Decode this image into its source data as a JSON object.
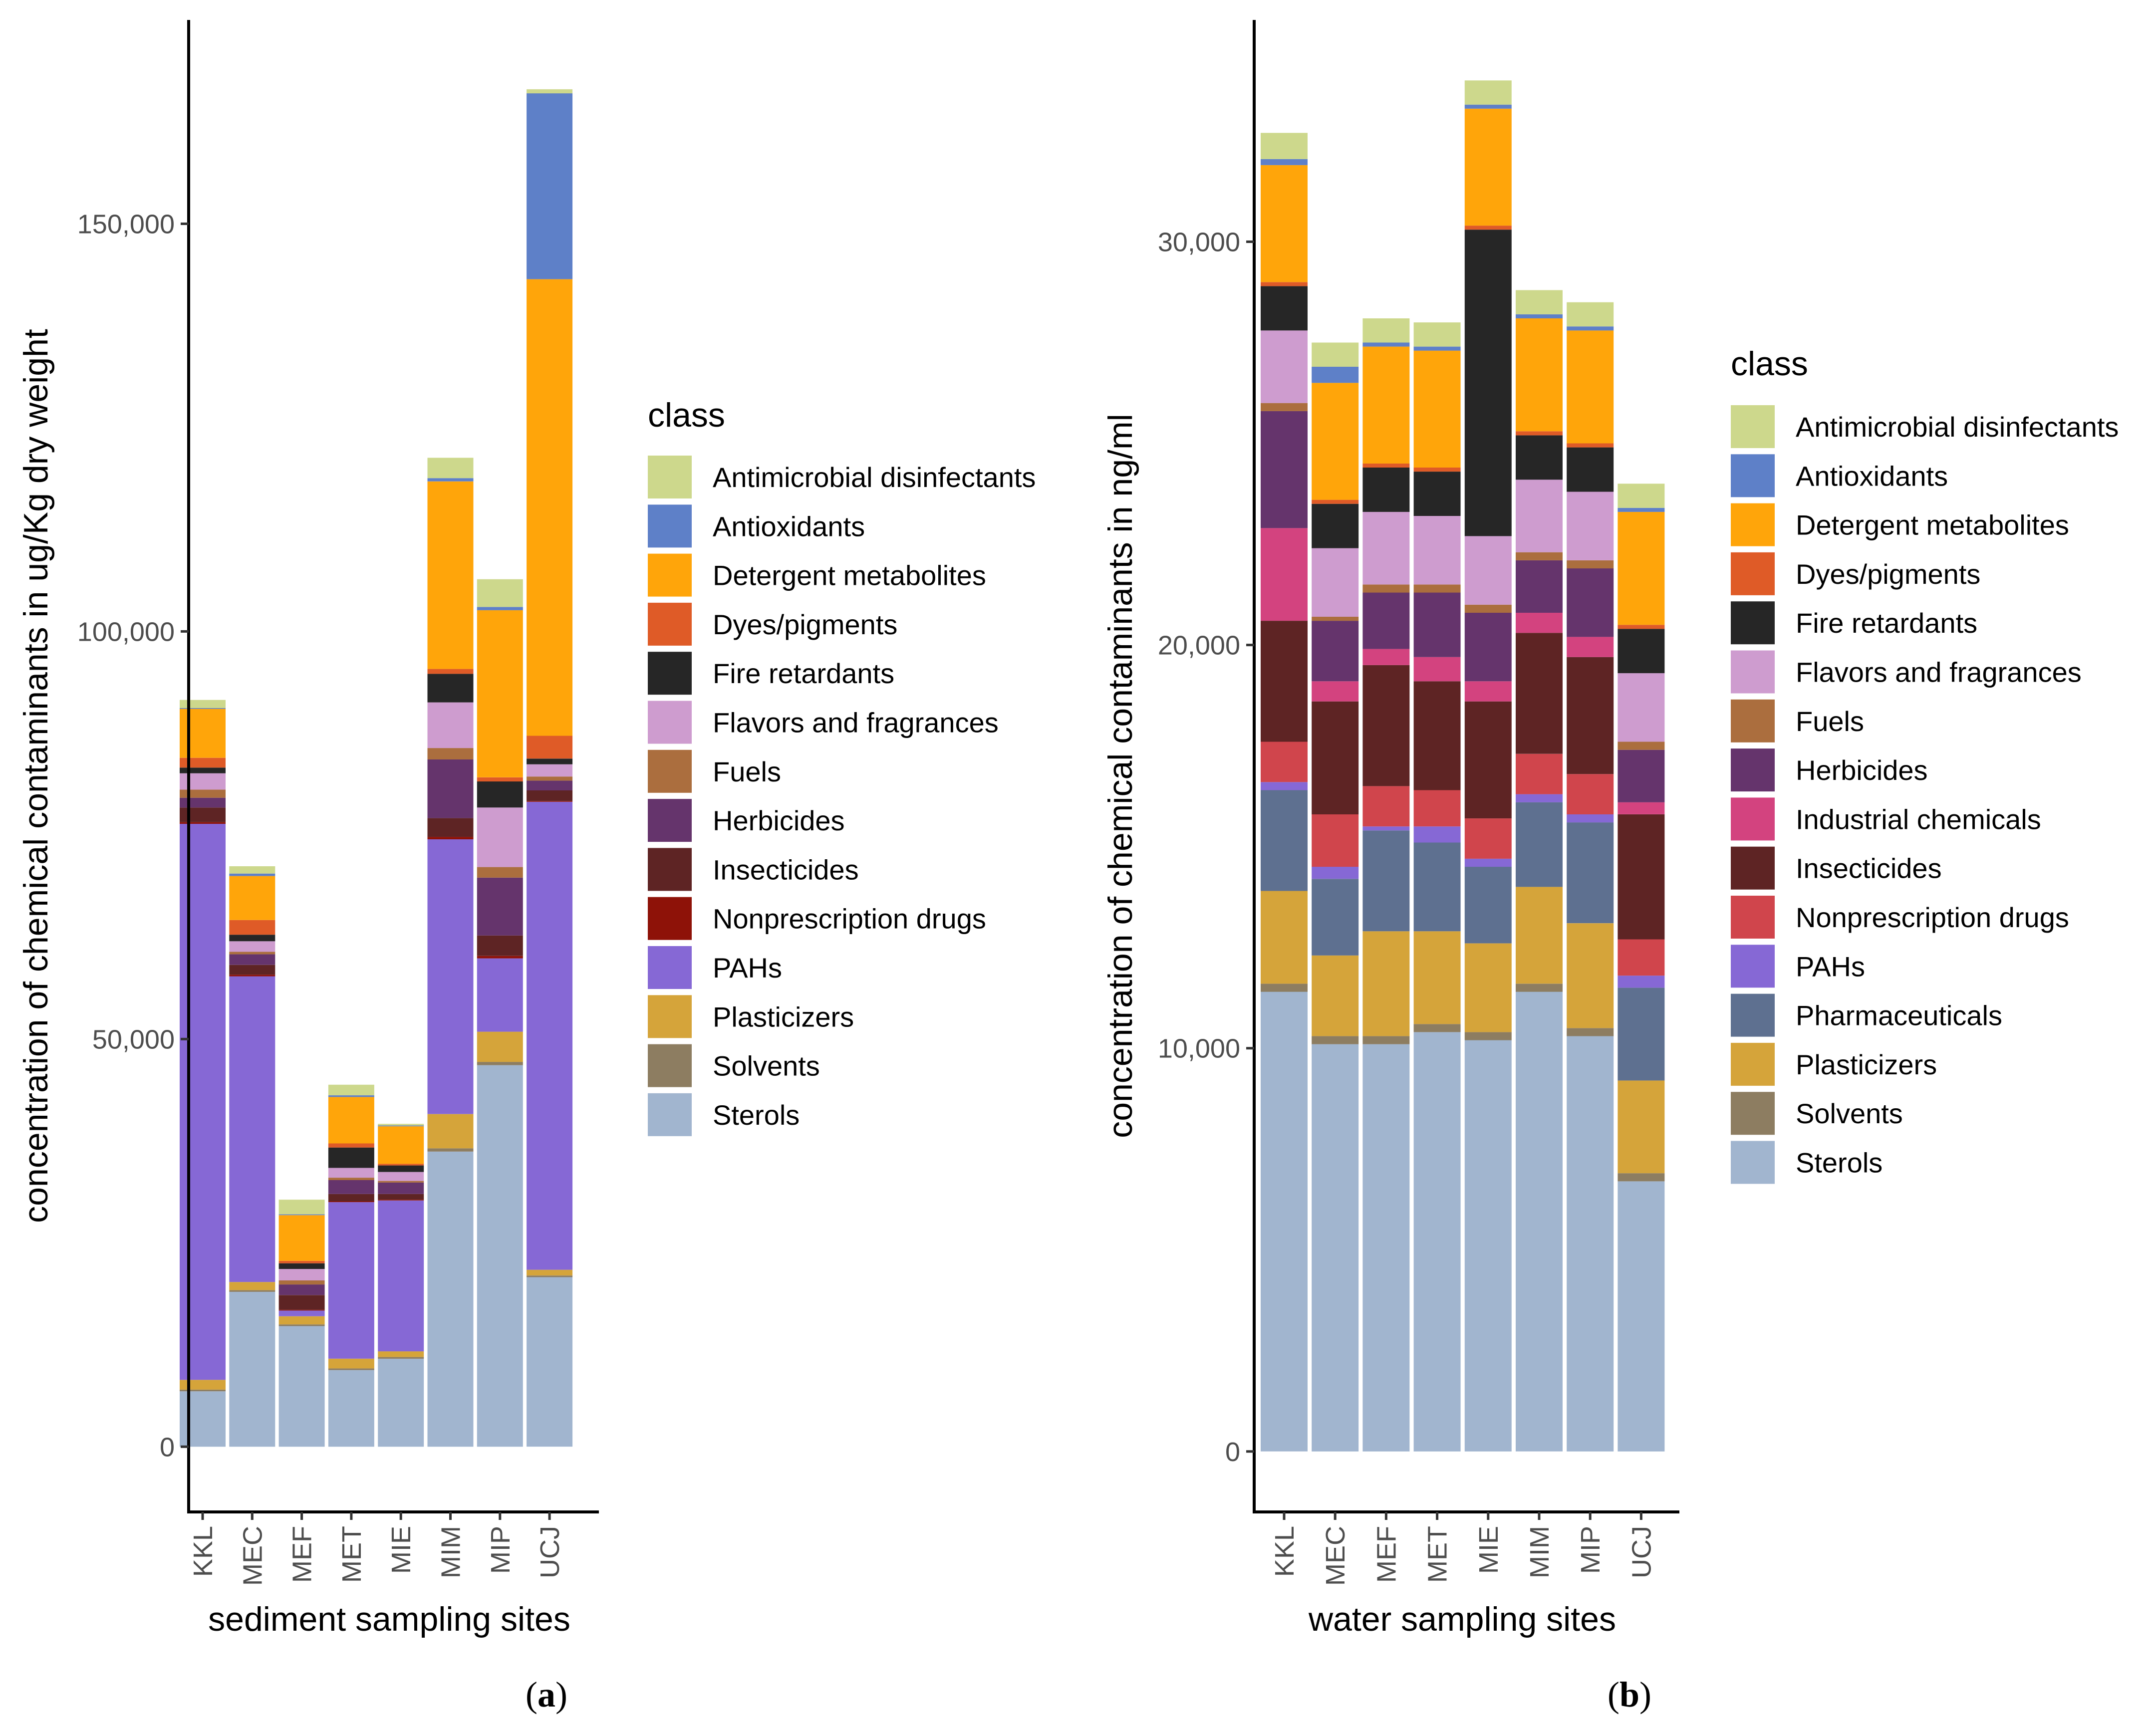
{
  "classes": {
    "Antimicrobial disinfectants": "#CDD88C",
    "Antioxidants": "#5E80C8",
    "Detergent metabolites": "#FFA50A",
    "Dyes/pigments": "#DF5B27",
    "Fire retardants": "#262626",
    "Flavors and fragrances": "#CE9CCF",
    "Fuels": "#AB6E3E",
    "Herbicides": "#65346C",
    "Industrial chemicals": "#D3437F",
    "Insecticides": "#5E2424",
    "Nonprescription drugs": "#D0454C",
    "Nonprescription drugs (a)": "#8E1208",
    "PAHs": "#8668D5",
    "Pharmaceuticals": "#5E7090",
    "Plasticizers": "#D5A43A",
    "Solvents": "#8D7D61",
    "Sterols": "#A1B5CF"
  },
  "chart_data": [
    {
      "type": "bar",
      "stacked": true,
      "panel_label": "(a)",
      "panel_letter": "a",
      "xlabel": "sediment sampling sites",
      "ylabel": "concentration of chemical contaminants in ug/Kg dry weight",
      "ylim": [
        -8000,
        175000
      ],
      "yticks": [
        0,
        50000,
        100000,
        150000
      ],
      "ytick_labels": [
        "0",
        "50,000",
        "100,000",
        "150,000"
      ],
      "categories": [
        "KKL",
        "MEC",
        "MEF",
        "MET",
        "MIE",
        "MIM",
        "MIP",
        "UCJ"
      ],
      "legend_title": "class",
      "legend": [
        {
          "label": "Antimicrobial disinfectants",
          "color": "#CDD88C"
        },
        {
          "label": "Antioxidants",
          "color": "#5E80C8"
        },
        {
          "label": "Detergent metabolites",
          "color": "#FFA50A"
        },
        {
          "label": "Dyes/pigments",
          "color": "#DF5B27"
        },
        {
          "label": "Fire retardants",
          "color": "#262626"
        },
        {
          "label": "Flavors and fragrances",
          "color": "#CE9CCF"
        },
        {
          "label": "Fuels",
          "color": "#AB6E3E"
        },
        {
          "label": "Herbicides",
          "color": "#65346C"
        },
        {
          "label": "Insecticides",
          "color": "#5E2424"
        },
        {
          "label": "Nonprescription drugs",
          "color": "#8E1208"
        },
        {
          "label": "PAHs",
          "color": "#8668D5"
        },
        {
          "label": "Plasticizers",
          "color": "#D5A43A"
        },
        {
          "label": "Solvents",
          "color": "#8D7D61"
        },
        {
          "label": "Sterols",
          "color": "#A1B5CF"
        }
      ],
      "series": [
        {
          "name": "Sterols",
          "color": "#A1B5CF",
          "values": [
            6800,
            19000,
            14800,
            9400,
            10800,
            36200,
            46800,
            20800
          ]
        },
        {
          "name": "Solvents",
          "color": "#8D7D61",
          "values": [
            200,
            200,
            200,
            200,
            200,
            400,
            400,
            200
          ]
        },
        {
          "name": "Plasticizers",
          "color": "#D5A43A",
          "values": [
            1200,
            1000,
            1000,
            1200,
            700,
            4200,
            3700,
            700
          ]
        },
        {
          "name": "PAHs",
          "color": "#8668D5",
          "values": [
            68200,
            37500,
            700,
            19200,
            18500,
            33700,
            9000,
            57400
          ]
        },
        {
          "name": "Nonprescription drugs",
          "color": "#8E1208",
          "values": [
            200,
            200,
            100,
            100,
            100,
            300,
            300,
            100
          ]
        },
        {
          "name": "Insecticides",
          "color": "#5E2424",
          "values": [
            1800,
            1200,
            1800,
            900,
            700,
            2300,
            2500,
            1300
          ]
        },
        {
          "name": "Herbicides",
          "color": "#65346C",
          "values": [
            1200,
            1300,
            1300,
            1700,
            1400,
            7200,
            7100,
            1200
          ]
        },
        {
          "name": "Fuels",
          "color": "#AB6E3E",
          "values": [
            1000,
            300,
            500,
            300,
            200,
            1400,
            1300,
            500
          ]
        },
        {
          "name": "Flavors and fragrances",
          "color": "#CE9CCF",
          "values": [
            2000,
            1300,
            1400,
            1200,
            1100,
            5600,
            7300,
            1500
          ]
        },
        {
          "name": "Fire retardants",
          "color": "#262626",
          "values": [
            700,
            800,
            700,
            2500,
            800,
            3500,
            3200,
            700
          ]
        },
        {
          "name": "Dyes/pigments",
          "color": "#DF5B27",
          "values": [
            1200,
            1800,
            300,
            500,
            200,
            600,
            500,
            2800
          ]
        },
        {
          "name": "Detergent metabolites",
          "color": "#FFA50A",
          "values": [
            6000,
            5400,
            5600,
            5700,
            4600,
            23000,
            20500,
            56000
          ]
        },
        {
          "name": "Antioxidants",
          "color": "#5E80C8",
          "values": [
            100,
            300,
            100,
            200,
            100,
            400,
            400,
            22800
          ]
        },
        {
          "name": "Antimicrobial disinfectants",
          "color": "#CDD88C",
          "values": [
            1000,
            900,
            1800,
            1300,
            200,
            2500,
            3400,
            500
          ]
        }
      ]
    },
    {
      "type": "bar",
      "stacked": true,
      "panel_label": "(b)",
      "panel_letter": "b",
      "xlabel": "water sampling sites",
      "ylabel": "concentration of chemical contaminants in ng/ml",
      "ylim": [
        -1500,
        35500
      ],
      "yticks": [
        0,
        10000,
        20000,
        30000
      ],
      "ytick_labels": [
        "0",
        "10,000",
        "20,000",
        "30,000"
      ],
      "categories": [
        "KKL",
        "MEC",
        "MEF",
        "MET",
        "MIE",
        "MIM",
        "MIP",
        "UCJ"
      ],
      "legend_title": "class",
      "legend": [
        {
          "label": "Antimicrobial disinfectants",
          "color": "#CDD88C"
        },
        {
          "label": "Antioxidants",
          "color": "#5E80C8"
        },
        {
          "label": "Detergent metabolites",
          "color": "#FFA50A"
        },
        {
          "label": "Dyes/pigments",
          "color": "#DF5B27"
        },
        {
          "label": "Fire retardants",
          "color": "#262626"
        },
        {
          "label": "Flavors and fragrances",
          "color": "#CE9CCF"
        },
        {
          "label": "Fuels",
          "color": "#AB6E3E"
        },
        {
          "label": "Herbicides",
          "color": "#65346C"
        },
        {
          "label": "Industrial chemicals",
          "color": "#D3437F"
        },
        {
          "label": "Insecticides",
          "color": "#5E2424"
        },
        {
          "label": "Nonprescription drugs",
          "color": "#D0454C"
        },
        {
          "label": "PAHs",
          "color": "#8668D5"
        },
        {
          "label": "Pharmaceuticals",
          "color": "#5E7090"
        },
        {
          "label": "Plasticizers",
          "color": "#D5A43A"
        },
        {
          "label": "Solvents",
          "color": "#8D7D61"
        },
        {
          "label": "Sterols",
          "color": "#A1B5CF"
        }
      ],
      "series": [
        {
          "name": "Sterols",
          "color": "#A1B5CF",
          "values": [
            11400,
            10100,
            10100,
            10400,
            10200,
            11400,
            10300,
            6700
          ]
        },
        {
          "name": "Solvents",
          "color": "#8D7D61",
          "values": [
            200,
            200,
            200,
            200,
            200,
            200,
            200,
            200
          ]
        },
        {
          "name": "Plasticizers",
          "color": "#D5A43A",
          "values": [
            2300,
            2000,
            2600,
            2300,
            2200,
            2400,
            2600,
            2300
          ]
        },
        {
          "name": "Pharmaceuticals",
          "color": "#5E7090",
          "values": [
            2500,
            1900,
            2500,
            2200,
            1900,
            2100,
            2500,
            2300
          ]
        },
        {
          "name": "PAHs",
          "color": "#8668D5",
          "values": [
            200,
            300,
            100,
            400,
            200,
            200,
            200,
            300
          ]
        },
        {
          "name": "Nonprescription drugs",
          "color": "#D0454C",
          "values": [
            1000,
            1300,
            1000,
            900,
            1000,
            1000,
            1000,
            900
          ]
        },
        {
          "name": "Insecticides",
          "color": "#5E2424",
          "values": [
            3000,
            2800,
            3000,
            2700,
            2900,
            3000,
            2900,
            3100
          ]
        },
        {
          "name": "Industrial chemicals",
          "color": "#D3437F",
          "values": [
            2300,
            500,
            400,
            600,
            500,
            500,
            500,
            300
          ]
        },
        {
          "name": "Herbicides",
          "color": "#65346C",
          "values": [
            2900,
            1500,
            1400,
            1600,
            1700,
            1300,
            1700,
            1300
          ]
        },
        {
          "name": "Fuels",
          "color": "#AB6E3E",
          "values": [
            200,
            100,
            200,
            200,
            200,
            200,
            200,
            200
          ]
        },
        {
          "name": "Flavors and fragrances",
          "color": "#CE9CCF",
          "values": [
            1800,
            1700,
            1800,
            1700,
            1700,
            1800,
            1700,
            1700
          ]
        },
        {
          "name": "Fire retardants",
          "color": "#262626",
          "values": [
            1100,
            1100,
            1100,
            1100,
            7600,
            1100,
            1100,
            1100
          ]
        },
        {
          "name": "Dyes/pigments",
          "color": "#DF5B27",
          "values": [
            100,
            100,
            100,
            100,
            100,
            100,
            100,
            100
          ]
        },
        {
          "name": "Detergent metabolites",
          "color": "#FFA50A",
          "values": [
            2900,
            2900,
            2900,
            2900,
            2900,
            2800,
            2800,
            2800
          ]
        },
        {
          "name": "Antioxidants",
          "color": "#5E80C8",
          "values": [
            150,
            400,
            100,
            100,
            100,
            100,
            100,
            100
          ]
        },
        {
          "name": "Antimicrobial disinfectants",
          "color": "#CDD88C",
          "values": [
            650,
            600,
            600,
            600,
            600,
            600,
            600,
            600
          ]
        }
      ]
    }
  ]
}
